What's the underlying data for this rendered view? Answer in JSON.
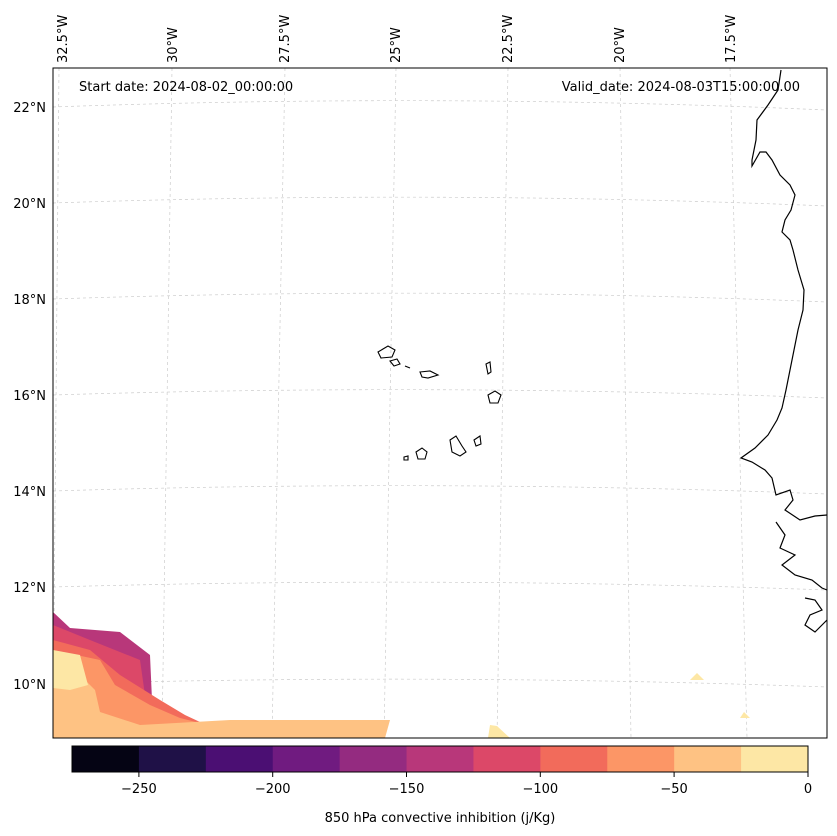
{
  "map": {
    "start_date": "Start date: 2024-08-02_00:00:00",
    "valid_date": "Valid_date: 2024-08-03T15:00:00.00",
    "lon_labels": [
      "32.5°W",
      "30°W",
      "27.5°W",
      "25°W",
      "22.5°W",
      "20°W",
      "17.5°W"
    ],
    "lat_labels": [
      "22°N",
      "20°N",
      "18°N",
      "16°N",
      "14°N",
      "12°N",
      "10°N"
    ],
    "gridlines": "dashed light gray"
  },
  "colorbar": {
    "label": "850 hPa convective inhibition (j/Kg)",
    "ticks": [
      "−250",
      "−200",
      "−150",
      "−100",
      "−50",
      "0"
    ],
    "bins": [
      -275,
      -250,
      -225,
      -200,
      -175,
      -150,
      -125,
      -100,
      -75,
      -50,
      -25,
      0
    ],
    "colors": [
      "#050414",
      "#1f1147",
      "#4b0f73",
      "#701b80",
      "#942b80",
      "#b8377a",
      "#dc4868",
      "#f26b5b",
      "#fc9666",
      "#fec283",
      "#fde7a5"
    ]
  }
}
